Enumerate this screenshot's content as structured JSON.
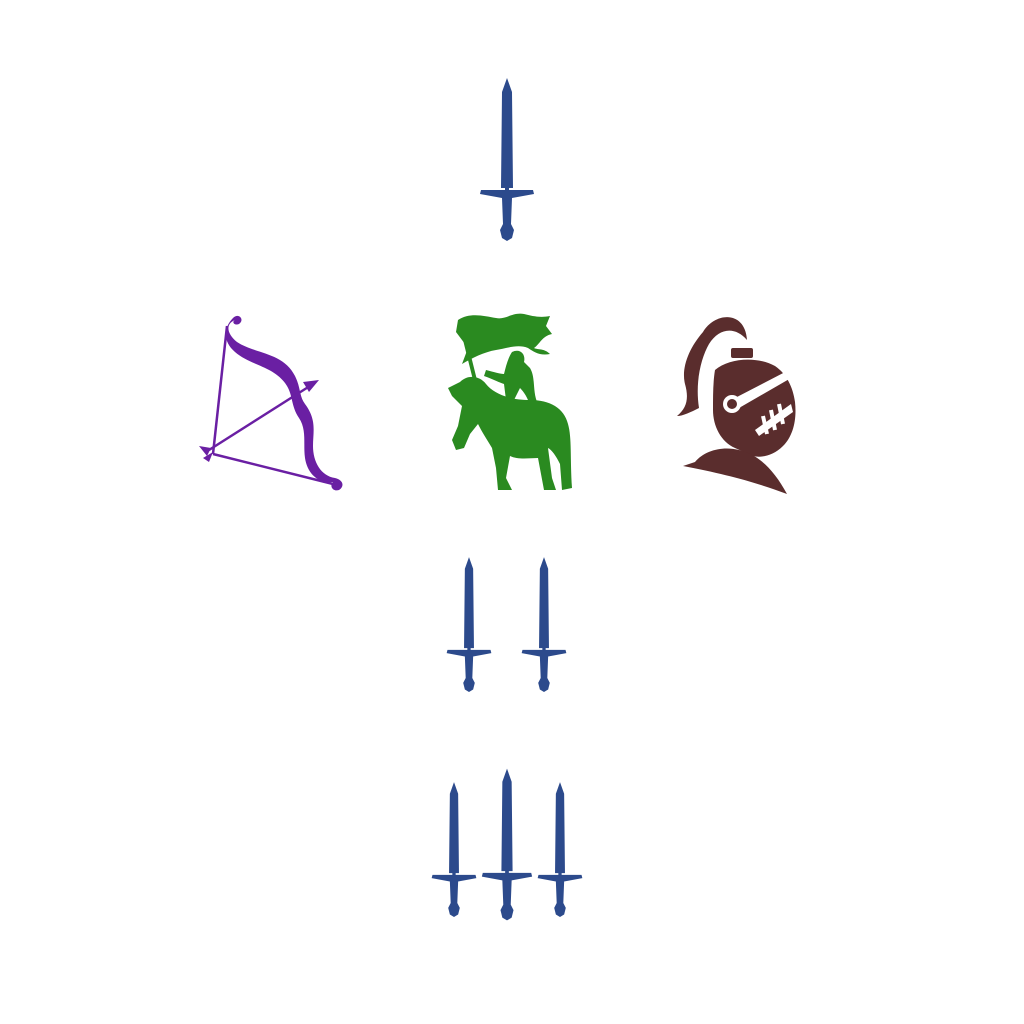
{
  "board": {
    "background": "#ffffff"
  },
  "colors": {
    "sword": "#2c4a8c",
    "bow": "#6a1fa3",
    "cavalry": "#2a8a20",
    "knight": "#5a2d2d"
  },
  "pieces": [
    {
      "id": "sword-one",
      "icon": "sword-icon",
      "count": 1,
      "color": "#2c4a8c"
    },
    {
      "id": "archer",
      "icon": "bow-and-arrow-icon",
      "count": 1,
      "color": "#6a1fa3"
    },
    {
      "id": "cavalry-banner",
      "icon": "horseman-with-banner-icon",
      "count": 1,
      "color": "#2a8a20"
    },
    {
      "id": "knight",
      "icon": "knight-helmet-icon",
      "count": 1,
      "color": "#5a2d2d"
    },
    {
      "id": "sword-two",
      "icon": "sword-icon",
      "count": 2,
      "color": "#2c4a8c"
    },
    {
      "id": "sword-three",
      "icon": "sword-icon",
      "count": 3,
      "color": "#2c4a8c"
    }
  ]
}
